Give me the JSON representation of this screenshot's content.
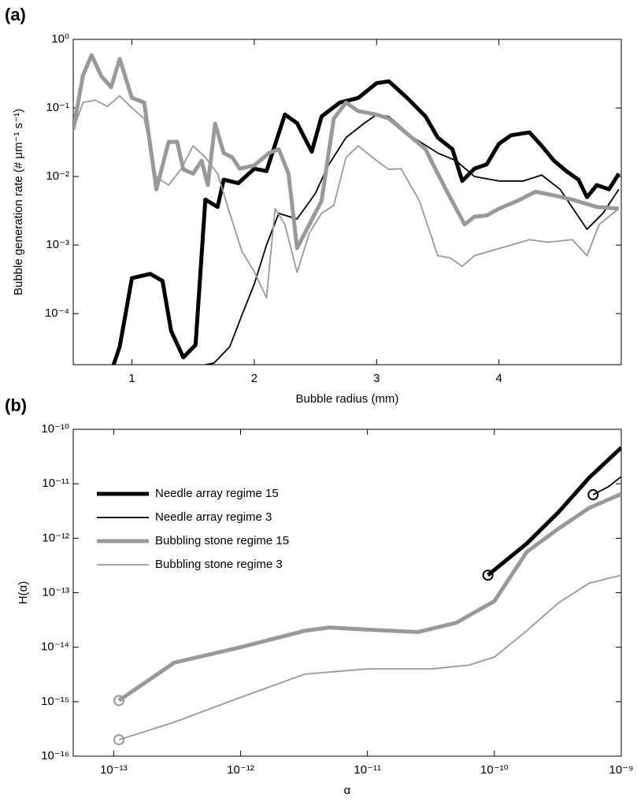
{
  "chart_data": [
    {
      "type": "line",
      "panel_label": "(a)",
      "xlabel": "Bubble radius (mm)",
      "ylabel": "Bubble generation rate (# μm⁻¹ s⁻¹)",
      "xlim": [
        0.52,
        5.0
      ],
      "xticks": [
        1,
        2,
        3,
        4
      ],
      "yscale": "log",
      "ylim": [
        1.8e-05,
        1
      ],
      "yticks": [
        {
          "value": 0.0001,
          "label": "10⁻⁴"
        },
        {
          "value": 0.001,
          "label": "10⁻³"
        },
        {
          "value": 0.01,
          "label": "10⁻²"
        },
        {
          "value": 0.1,
          "label": "10⁻¹"
        },
        {
          "value": 1,
          "label": "10⁰"
        }
      ],
      "series": [
        {
          "color": "#000000",
          "linewidth": 5,
          "x": [
            0.85,
            0.9,
            1.0,
            1.15,
            1.25,
            1.32,
            1.42,
            1.52,
            1.6,
            1.7,
            1.75,
            1.87,
            2.0,
            2.1,
            2.25,
            2.35,
            2.47,
            2.55,
            2.7,
            2.85,
            3.0,
            3.1,
            3.25,
            3.4,
            3.5,
            3.62,
            3.7,
            3.8,
            3.9,
            4.0,
            4.1,
            4.25,
            4.35,
            4.45,
            4.55,
            4.65,
            4.72,
            4.8,
            4.9,
            4.98
          ],
          "values": [
            1.8e-05,
            3.3e-05,
            0.00033,
            0.00038,
            0.0003,
            5.6e-05,
            2.3e-05,
            3.5e-05,
            0.0046,
            0.0036,
            0.009,
            0.008,
            0.013,
            0.012,
            0.08,
            0.06,
            0.023,
            0.075,
            0.12,
            0.14,
            0.23,
            0.245,
            0.14,
            0.075,
            0.037,
            0.025,
            0.0086,
            0.013,
            0.015,
            0.03,
            0.04,
            0.044,
            0.028,
            0.017,
            0.012,
            0.009,
            0.005,
            0.0075,
            0.0065,
            0.011
          ]
        },
        {
          "color": "#000000",
          "linewidth": 1.8,
          "x": [
            1.6,
            1.67,
            1.8,
            1.9,
            2.0,
            2.1,
            2.2,
            2.35,
            2.5,
            2.6,
            2.75,
            2.9,
            3.0,
            3.1,
            3.3,
            3.5,
            3.65,
            3.8,
            4.0,
            4.2,
            4.35,
            4.5,
            4.72,
            4.85,
            4.98
          ],
          "values": [
            1.8e-05,
            1.9e-05,
            3.3e-05,
            9.6e-05,
            0.00027,
            0.001,
            0.0029,
            0.0024,
            0.0057,
            0.014,
            0.037,
            0.06,
            0.08,
            0.075,
            0.037,
            0.022,
            0.017,
            0.01,
            0.0086,
            0.0086,
            0.0105,
            0.0065,
            0.0017,
            0.0029,
            0.0065
          ]
        },
        {
          "color": "#999999",
          "linewidth": 5,
          "x": [
            0.52,
            0.6,
            0.67,
            0.75,
            0.83,
            0.9,
            1.0,
            1.1,
            1.2,
            1.3,
            1.37,
            1.42,
            1.5,
            1.57,
            1.62,
            1.68,
            1.75,
            1.82,
            1.88,
            2.0,
            2.12,
            2.2,
            2.28,
            2.35,
            2.45,
            2.55,
            2.65,
            2.75,
            2.85,
            3.0,
            3.1,
            3.25,
            3.4,
            3.5,
            3.6,
            3.72,
            3.8,
            3.9,
            4.0,
            4.15,
            4.3,
            4.45,
            4.6,
            4.8,
            4.98
          ],
          "values": [
            0.048,
            0.3,
            0.59,
            0.29,
            0.2,
            0.52,
            0.14,
            0.12,
            0.0065,
            0.032,
            0.032,
            0.0127,
            0.011,
            0.017,
            0.0075,
            0.059,
            0.022,
            0.019,
            0.013,
            0.0145,
            0.022,
            0.025,
            0.011,
            0.0009,
            0.002,
            0.0044,
            0.07,
            0.12,
            0.09,
            0.08,
            0.07,
            0.042,
            0.025,
            0.011,
            0.005,
            0.002,
            0.0026,
            0.0027,
            0.0034,
            0.0044,
            0.006,
            0.0053,
            0.0046,
            0.0036,
            0.0034
          ]
        },
        {
          "color": "#999999",
          "linewidth": 1.8,
          "x": [
            0.52,
            0.6,
            0.7,
            0.8,
            0.9,
            1.0,
            1.1,
            1.2,
            1.3,
            1.4,
            1.5,
            1.6,
            1.7,
            1.8,
            1.9,
            2.0,
            2.1,
            2.17,
            2.25,
            2.35,
            2.45,
            2.55,
            2.65,
            2.75,
            2.85,
            3.0,
            3.1,
            3.2,
            3.35,
            3.5,
            3.6,
            3.7,
            3.8,
            3.95,
            4.1,
            4.25,
            4.4,
            4.6,
            4.72,
            4.82,
            4.98
          ],
          "values": [
            0.048,
            0.12,
            0.13,
            0.105,
            0.15,
            0.1,
            0.07,
            0.0098,
            0.0075,
            0.0127,
            0.028,
            0.019,
            0.011,
            0.0029,
            0.0008,
            0.00041,
            0.00017,
            0.0034,
            0.002,
            0.0004,
            0.0015,
            0.0029,
            0.0038,
            0.019,
            0.028,
            0.017,
            0.0127,
            0.013,
            0.0044,
            0.0007,
            0.00065,
            0.00049,
            0.0007,
            0.00084,
            0.001,
            0.0012,
            0.0011,
            0.0012,
            0.0007,
            0.002,
            0.0034
          ]
        }
      ]
    },
    {
      "type": "line",
      "panel_label": "(b)",
      "xlabel": "α",
      "ylabel": "H(α)",
      "legend": "upper left",
      "start_marker": "circle",
      "xscale": "log",
      "xlim": [
        4.8e-14,
        1e-09
      ],
      "xticks": [
        {
          "value": 1e-13,
          "label": "10⁻¹³"
        },
        {
          "value": 1e-12,
          "label": "10⁻¹²"
        },
        {
          "value": 1e-11,
          "label": "10⁻¹¹"
        },
        {
          "value": 1e-10,
          "label": "10⁻¹⁰"
        },
        {
          "value": 1e-09,
          "label": "10⁻⁹"
        }
      ],
      "yscale": "log",
      "ylim": [
        1e-16,
        1e-10
      ],
      "yticks": [
        {
          "value": 1e-16,
          "label": "10⁻¹⁶"
        },
        {
          "value": 1e-15,
          "label": "10⁻¹⁵"
        },
        {
          "value": 1e-14,
          "label": "10⁻¹⁴"
        },
        {
          "value": 1e-13,
          "label": "10⁻¹³"
        },
        {
          "value": 1e-12,
          "label": "10⁻¹²"
        },
        {
          "value": 1e-11,
          "label": "10⁻¹¹"
        },
        {
          "value": 1e-10,
          "label": "10⁻¹⁰"
        }
      ],
      "series": [
        {
          "name": "Needle array regime 15",
          "color": "#000000",
          "linewidth": 5,
          "x": [
            8.9e-11,
            1.8e-10,
            3.2e-10,
            5.6e-10,
            1e-09
          ],
          "values": [
            2.1e-13,
            8e-13,
            3e-12,
            1.3e-11,
            4.6e-11
          ]
        },
        {
          "name": "Needle array regime 3",
          "color": "#000000",
          "linewidth": 1.8,
          "x": [
            6e-10,
            7.9e-10,
            1e-09
          ],
          "values": [
            6.3e-12,
            8.8e-12,
            1.35e-11
          ]
        },
        {
          "name": "Bubbling stone regime 15",
          "color": "#999999",
          "linewidth": 5,
          "x": [
            1.1e-13,
            3e-13,
            1e-12,
            3.2e-12,
            5e-12,
            1e-11,
            2.5e-11,
            5e-11,
            1e-10,
            1.8e-10,
            3.2e-10,
            5.6e-10,
            1e-09
          ],
          "values": [
            1.05e-15,
            5.2e-15,
            1e-14,
            2e-14,
            2.3e-14,
            2.1e-14,
            1.9e-14,
            2.8e-14,
            7e-14,
            5.6e-13,
            1.5e-12,
            3.6e-12,
            6.5e-12
          ]
        },
        {
          "name": "Bubbling stone regime 3",
          "color": "#999999",
          "linewidth": 1.8,
          "x": [
            1.1e-13,
            3e-13,
            1e-12,
            3.2e-12,
            1e-11,
            3.2e-11,
            6.3e-11,
            1e-10,
            1.8e-10,
            3.2e-10,
            5.6e-10,
            1e-09
          ],
          "values": [
            2e-16,
            4.2e-16,
            1.2e-15,
            3.2e-15,
            4e-15,
            4e-15,
            4.7e-15,
            6.6e-15,
            2e-14,
            6.5e-14,
            1.5e-13,
            2.1e-13
          ]
        }
      ]
    }
  ]
}
